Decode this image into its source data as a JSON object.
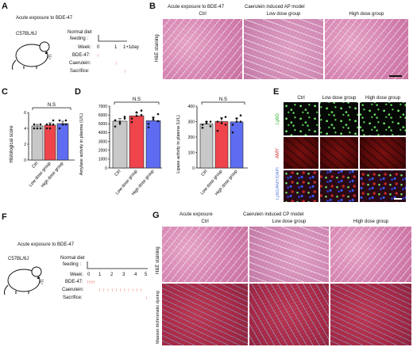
{
  "panels": {
    "A": "A",
    "B": "B",
    "C": "C",
    "D": "D",
    "E": "E",
    "F": "F",
    "G": "G"
  },
  "A": {
    "title": "Acute exposure to BDE-47",
    "strain": "C57BL/6J",
    "diet_line1": "Normal diet",
    "diet_line2": "feeding :",
    "week_label": "Week:",
    "week_ticks": [
      "0",
      "1",
      "1+1day"
    ],
    "bde_label": "BDE-47:",
    "caerulein_label": "Caerulein:",
    "sacrifice_label": "Sacrifice:"
  },
  "B": {
    "header_left": "Acute exposure to BDE-47",
    "header_right": "Caerulein induced AP model",
    "groups": [
      "Ctrl",
      "Low dose group",
      "High dose group"
    ],
    "row_label": "H&E staining"
  },
  "C": {
    "significance": "N.S"
  },
  "D": {
    "significance_left": "N.S",
    "significance_right": "N.S"
  },
  "E": {
    "groups": [
      "Ctrl",
      "Low dose group",
      "High dose group"
    ],
    "rows": [
      "Ly6G",
      "AMY",
      "Ly6G/AMY/DAPI"
    ]
  },
  "F": {
    "title": "Acute exposure to BDE-47",
    "strain": "C57BL/6J",
    "diet_line1": "Normal diet",
    "diet_line2": "feeding :",
    "week_label": "Week:",
    "week_ticks": [
      "0",
      "1",
      "2",
      "3",
      "4",
      "5"
    ],
    "bde_label": "BDE-47:",
    "caerulein_label": "Caerulein:",
    "sacrifice_label": "Sacrifice:"
  },
  "G": {
    "header_left": "Acute exposure",
    "header_right": "Caerulein induced CP model",
    "groups": [
      "Ctrl",
      "Low dose group",
      "High dose group"
    ],
    "rows": [
      "H&E staining",
      "Masson trichromatic dyeing"
    ]
  },
  "colors": {
    "ctrl": "#c8c8c8",
    "low": "#f0444c",
    "high": "#5d6cf0",
    "arrow": "#e0462a"
  },
  "chart_data": [
    {
      "type": "bar",
      "ylabel": "Histological score",
      "ylim": [
        0,
        6
      ],
      "yticks": [
        "0",
        "2",
        "4",
        "6"
      ],
      "categories": [
        "Ctrl",
        "Low dose group",
        "High dose group"
      ],
      "values": [
        4.3,
        4.4,
        4.6
      ],
      "errors": [
        0.2,
        0.3,
        0.3
      ],
      "points": [
        [
          4.0,
          4.0,
          4.5,
          4.5,
          4.0,
          4.0
        ],
        [
          4.0,
          4.5,
          5.0,
          4.5,
          4.0,
          4.5
        ],
        [
          4.0,
          4.5,
          5.0,
          5.0,
          4.5,
          4.5
        ]
      ],
      "annotation": "N.S"
    },
    {
      "type": "bar",
      "ylabel": "Amylase activity in plasma (U/L)",
      "yticks": [
        "0",
        "1000",
        "2000",
        "3000",
        "4000",
        "5000",
        "6000",
        "7000"
      ],
      "ylim": [
        0,
        7000
      ],
      "categories": [
        "Ctrl",
        "Low dose group",
        "High dose group"
      ],
      "values": [
        5300,
        5900,
        5350
      ],
      "errors": [
        300,
        350,
        400
      ],
      "points": [
        [
          4700,
          5200,
          5800,
          5400,
          5000,
          5600
        ],
        [
          5200,
          6300,
          6500,
          5600,
          5900,
          6000
        ],
        [
          4600,
          5500,
          6100,
          5000,
          5700,
          5300
        ]
      ],
      "annotation": "N.S"
    },
    {
      "type": "bar",
      "ylabel": "Lipase activity in plasma (U/L)",
      "yticks": [
        "0",
        "100",
        "200",
        "300",
        "400"
      ],
      "ylim": [
        0,
        400
      ],
      "categories": [
        "Ctrl",
        "Low dose group",
        "High dose group"
      ],
      "values": [
        285,
        300,
        298
      ],
      "errors": [
        15,
        25,
        25
      ],
      "points": [
        [
          260,
          290,
          300,
          280,
          300,
          270
        ],
        [
          240,
          290,
          330,
          300,
          320,
          280
        ],
        [
          230,
          300,
          340,
          280,
          320,
          300
        ]
      ],
      "annotation": "N.S"
    }
  ]
}
